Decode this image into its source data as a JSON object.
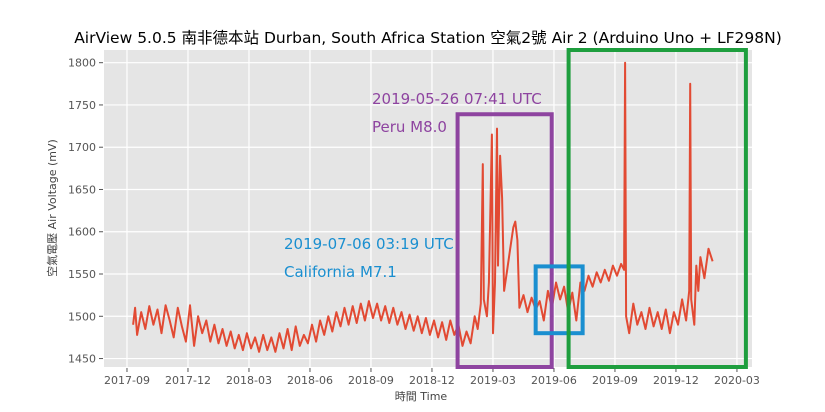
{
  "chart_data": {
    "type": "line",
    "title": "AirView 5.0.5 南非德本站 Durban, South Africa Station 空氣2號 Air 2 (Arduino Uno + LF298N)",
    "xlabel": "時間 Time",
    "ylabel": "空氣電壓 Air Voltage (mV)",
    "x_units": "months since 2017-01",
    "xlim": [
      6.87,
      38.74
    ],
    "ylim": [
      1440,
      1815
    ],
    "grid": true,
    "style": "ggplot",
    "xticks": [
      {
        "value": 8,
        "label": "2017-09"
      },
      {
        "value": 11,
        "label": "2017-12"
      },
      {
        "value": 14,
        "label": "2018-03"
      },
      {
        "value": 17,
        "label": "2018-06"
      },
      {
        "value": 20,
        "label": "2018-09"
      },
      {
        "value": 23,
        "label": "2018-12"
      },
      {
        "value": 26,
        "label": "2019-03"
      },
      {
        "value": 29,
        "label": "2019-06"
      },
      {
        "value": 32,
        "label": "2019-09"
      },
      {
        "value": 35,
        "label": "2019-12"
      },
      {
        "value": 38,
        "label": "2020-03"
      }
    ],
    "yticks": [
      1450,
      1500,
      1550,
      1600,
      1650,
      1700,
      1750,
      1800
    ],
    "series": [
      {
        "name": "Air Voltage",
        "color": "#e24a33",
        "points": [
          [
            8.3,
            1490
          ],
          [
            8.4,
            1510
          ],
          [
            8.5,
            1478
          ],
          [
            8.7,
            1505
          ],
          [
            8.9,
            1485
          ],
          [
            9.1,
            1512
          ],
          [
            9.3,
            1490
          ],
          [
            9.5,
            1508
          ],
          [
            9.7,
            1480
          ],
          [
            9.9,
            1513
          ],
          [
            10.1,
            1495
          ],
          [
            10.3,
            1475
          ],
          [
            10.5,
            1510
          ],
          [
            10.7,
            1488
          ],
          [
            10.9,
            1470
          ],
          [
            11.1,
            1513
          ],
          [
            11.3,
            1465
          ],
          [
            11.5,
            1500
          ],
          [
            11.7,
            1480
          ],
          [
            11.9,
            1495
          ],
          [
            12.1,
            1470
          ],
          [
            12.3,
            1490
          ],
          [
            12.5,
            1468
          ],
          [
            12.7,
            1485
          ],
          [
            12.9,
            1465
          ],
          [
            13.1,
            1482
          ],
          [
            13.3,
            1462
          ],
          [
            13.5,
            1478
          ],
          [
            13.7,
            1460
          ],
          [
            13.9,
            1480
          ],
          [
            14.1,
            1462
          ],
          [
            14.3,
            1475
          ],
          [
            14.5,
            1458
          ],
          [
            14.7,
            1478
          ],
          [
            14.9,
            1460
          ],
          [
            15.1,
            1475
          ],
          [
            15.3,
            1458
          ],
          [
            15.5,
            1480
          ],
          [
            15.7,
            1462
          ],
          [
            15.9,
            1485
          ],
          [
            16.1,
            1460
          ],
          [
            16.3,
            1488
          ],
          [
            16.5,
            1465
          ],
          [
            16.7,
            1478
          ],
          [
            16.9,
            1468
          ],
          [
            17.1,
            1490
          ],
          [
            17.3,
            1470
          ],
          [
            17.5,
            1495
          ],
          [
            17.7,
            1478
          ],
          [
            17.9,
            1500
          ],
          [
            18.1,
            1482
          ],
          [
            18.3,
            1505
          ],
          [
            18.5,
            1488
          ],
          [
            18.7,
            1510
          ],
          [
            18.9,
            1490
          ],
          [
            19.1,
            1512
          ],
          [
            19.3,
            1492
          ],
          [
            19.5,
            1515
          ],
          [
            19.7,
            1495
          ],
          [
            19.9,
            1518
          ],
          [
            20.1,
            1498
          ],
          [
            20.3,
            1515
          ],
          [
            20.5,
            1495
          ],
          [
            20.7,
            1512
          ],
          [
            20.9,
            1492
          ],
          [
            21.1,
            1510
          ],
          [
            21.3,
            1490
          ],
          [
            21.5,
            1505
          ],
          [
            21.7,
            1485
          ],
          [
            21.9,
            1502
          ],
          [
            22.1,
            1483
          ],
          [
            22.3,
            1500
          ],
          [
            22.5,
            1480
          ],
          [
            22.7,
            1498
          ],
          [
            22.9,
            1478
          ],
          [
            23.1,
            1495
          ],
          [
            23.3,
            1475
          ],
          [
            23.5,
            1493
          ],
          [
            23.7,
            1472
          ],
          [
            23.9,
            1495
          ],
          [
            24.1,
            1478
          ],
          [
            24.3,
            1490
          ],
          [
            24.5,
            1465
          ],
          [
            24.7,
            1482
          ],
          [
            24.9,
            1468
          ],
          [
            25.1,
            1500
          ],
          [
            25.25,
            1485
          ],
          [
            25.4,
            1515
          ],
          [
            25.5,
            1680
          ],
          [
            25.55,
            1520
          ],
          [
            25.7,
            1500
          ],
          [
            25.8,
            1540
          ],
          [
            25.95,
            1715
          ],
          [
            26.0,
            1480
          ],
          [
            26.1,
            1540
          ],
          [
            26.2,
            1722
          ],
          [
            26.25,
            1560
          ],
          [
            26.35,
            1690
          ],
          [
            26.45,
            1640
          ],
          [
            26.55,
            1530
          ],
          [
            26.7,
            1555
          ],
          [
            26.85,
            1580
          ],
          [
            27.0,
            1605
          ],
          [
            27.1,
            1612
          ],
          [
            27.2,
            1590
          ],
          [
            27.3,
            1510
          ],
          [
            27.5,
            1525
          ],
          [
            27.7,
            1505
          ],
          [
            27.9,
            1522
          ],
          [
            28.1,
            1508
          ],
          [
            28.3,
            1518
          ],
          [
            28.5,
            1495
          ],
          [
            28.7,
            1530
          ],
          [
            28.9,
            1510
          ],
          [
            29.1,
            1540
          ],
          [
            29.3,
            1520
          ],
          [
            29.5,
            1535
          ],
          [
            29.7,
            1505
          ],
          [
            29.9,
            1528
          ],
          [
            30.1,
            1495
          ],
          [
            30.3,
            1540
          ],
          [
            30.5,
            1530
          ],
          [
            30.7,
            1548
          ],
          [
            30.9,
            1535
          ],
          [
            31.1,
            1552
          ],
          [
            31.3,
            1540
          ],
          [
            31.5,
            1555
          ],
          [
            31.7,
            1542
          ],
          [
            31.9,
            1560
          ],
          [
            32.1,
            1548
          ],
          [
            32.3,
            1562
          ],
          [
            32.45,
            1555
          ],
          [
            32.5,
            1800
          ],
          [
            32.55,
            1500
          ],
          [
            32.7,
            1480
          ],
          [
            32.9,
            1515
          ],
          [
            33.1,
            1490
          ],
          [
            33.3,
            1505
          ],
          [
            33.5,
            1485
          ],
          [
            33.7,
            1510
          ],
          [
            33.9,
            1488
          ],
          [
            34.1,
            1505
          ],
          [
            34.3,
            1485
          ],
          [
            34.5,
            1508
          ],
          [
            34.7,
            1480
          ],
          [
            34.9,
            1505
          ],
          [
            35.1,
            1490
          ],
          [
            35.3,
            1520
          ],
          [
            35.5,
            1495
          ],
          [
            35.65,
            1530
          ],
          [
            35.7,
            1775
          ],
          [
            35.75,
            1520
          ],
          [
            35.9,
            1490
          ],
          [
            36.0,
            1560
          ],
          [
            36.1,
            1530
          ],
          [
            36.2,
            1570
          ],
          [
            36.4,
            1545
          ],
          [
            36.6,
            1580
          ],
          [
            36.8,
            1565
          ]
        ]
      }
    ],
    "annotations": [
      {
        "name": "peru",
        "color": "#8e44a0",
        "box": {
          "x": [
            24.26,
            28.89
          ],
          "y": [
            1440,
            1739
          ]
        },
        "lines": [
          "2019-05-26 07:41 UTC",
          "Peru M8.0"
        ]
      },
      {
        "name": "california",
        "color": "#1a8fd0",
        "box": {
          "x": [
            28.1,
            30.41
          ],
          "y": [
            1480,
            1559
          ]
        },
        "lines": [
          "2019-07-06 03:19 UTC",
          "California M7.1"
        ]
      },
      {
        "name": "highlight",
        "color": "#1e9e3e",
        "box": {
          "x": [
            29.72,
            38.44
          ],
          "y": [
            1440,
            1815
          ]
        },
        "lines": []
      }
    ]
  }
}
